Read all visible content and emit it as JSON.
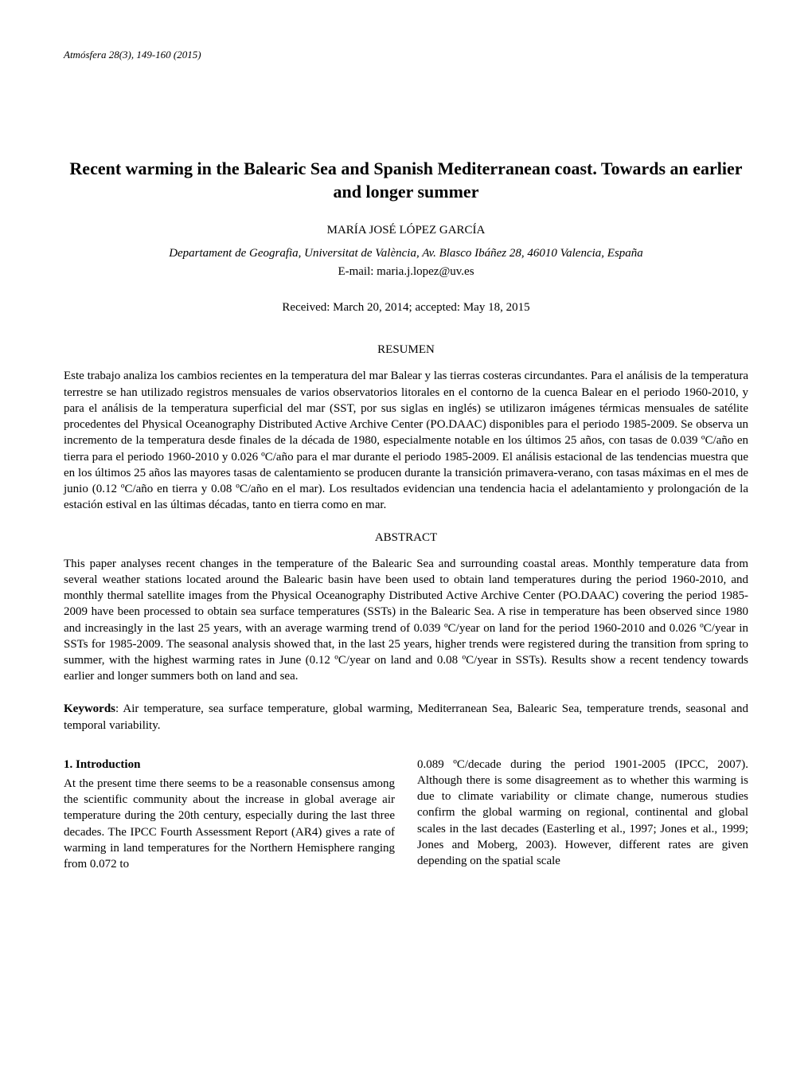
{
  "header": {
    "reference": "Atmósfera 28(3), 149-160 (2015)"
  },
  "title": "Recent warming in the Balearic Sea and Spanish Mediterranean coast. Towards an earlier and longer summer",
  "author": "MARÍA JOSÉ LÓPEZ GARCÍA",
  "affiliation": "Departament de Geografia, Universitat de València, Av. Blasco Ibáñez 28, 46010 Valencia, España",
  "email": "E-mail: maria.j.lopez@uv.es",
  "dates": "Received: March 20, 2014; accepted: May 18, 2015",
  "resumen": {
    "heading": "RESUMEN",
    "text": "Este trabajo analiza los cambios recientes en la temperatura del mar Balear y las tierras costeras circundantes. Para el análisis de la temperatura terrestre se han utilizado registros mensuales de varios observatorios litorales en el contorno de la cuenca Balear en el periodo 1960-2010, y para el análisis de la temperatura superficial del mar (SST, por sus siglas en inglés) se utilizaron imágenes térmicas mensuales de satélite procedentes del Physical Oceanography Distributed Active Archive Center (PO.DAAC) disponibles para el periodo 1985-2009. Se observa un incremento de la temperatura desde finales de la década de 1980, especialmente notable en los últimos 25 años, con tasas de 0.039 ºC/año en tierra para el periodo 1960-2010 y 0.026 ºC/año para el mar durante el periodo 1985-2009. El análisis estacional de las tendencias muestra que en los últimos 25 años las mayores tasas de calentamiento se producen durante la transición primavera-verano, con tasas máximas en el mes de junio (0.12 ºC/año en tierra y 0.08 ºC/año en el mar). Los resultados evidencian una tendencia hacia el adelantamiento y prolongación de la estación estival en las últimas décadas, tanto en tierra como en mar."
  },
  "abstract": {
    "heading": "ABSTRACT",
    "text": "This paper analyses recent changes in the temperature of the Balearic Sea and surrounding coastal areas. Monthly temperature data from several weather stations located around the Balearic basin have been used to obtain land temperatures during the period 1960-2010, and monthly thermal satellite images from the Physical Oceanography Distributed Active Archive Center (PO.DAAC) covering the period 1985-2009 have been processed to obtain sea surface temperatures (SSTs) in the Balearic Sea. A rise in temperature has been observed since 1980 and increasingly in the last 25 years, with an average warming trend of 0.039 ºC/year on land for the period 1960-2010 and 0.026 ºC/year in SSTs for 1985-2009. The seasonal analysis showed that, in the last 25 years, higher trends were registered during the transition from spring to summer, with the highest warming rates in June (0.12 ºC/year on land and 0.08 ºC/year in SSTs). Results show a recent tendency towards earlier and longer summers both on land and sea."
  },
  "keywords": {
    "label": "Keywords",
    "text": ": Air temperature, sea surface temperature, global warming, Mediterranean Sea, Balearic Sea, temperature trends, seasonal and temporal variability."
  },
  "introduction": {
    "heading": "1.  Introduction",
    "col1": "At the present time there seems to be a reasonable consensus among the scientific community about the increase in global average air temperature during the 20th century, especially during the last three decades. The IPCC Fourth Assessment Report (AR4) gives a rate of warming in land temperatures for the Northern Hemisphere ranging from 0.072 to",
    "col2": "0.089 ºC/decade during the period 1901-2005 (IPCC, 2007). Although there is some disagreement as to whether this warming is due to climate variability or climate change, numerous studies confirm the global warming on regional, continental and global scales in the last decades (Easterling et al., 1997; Jones et al., 1999; Jones and Moberg, 2003). However, different rates are given depending on the spatial scale"
  }
}
